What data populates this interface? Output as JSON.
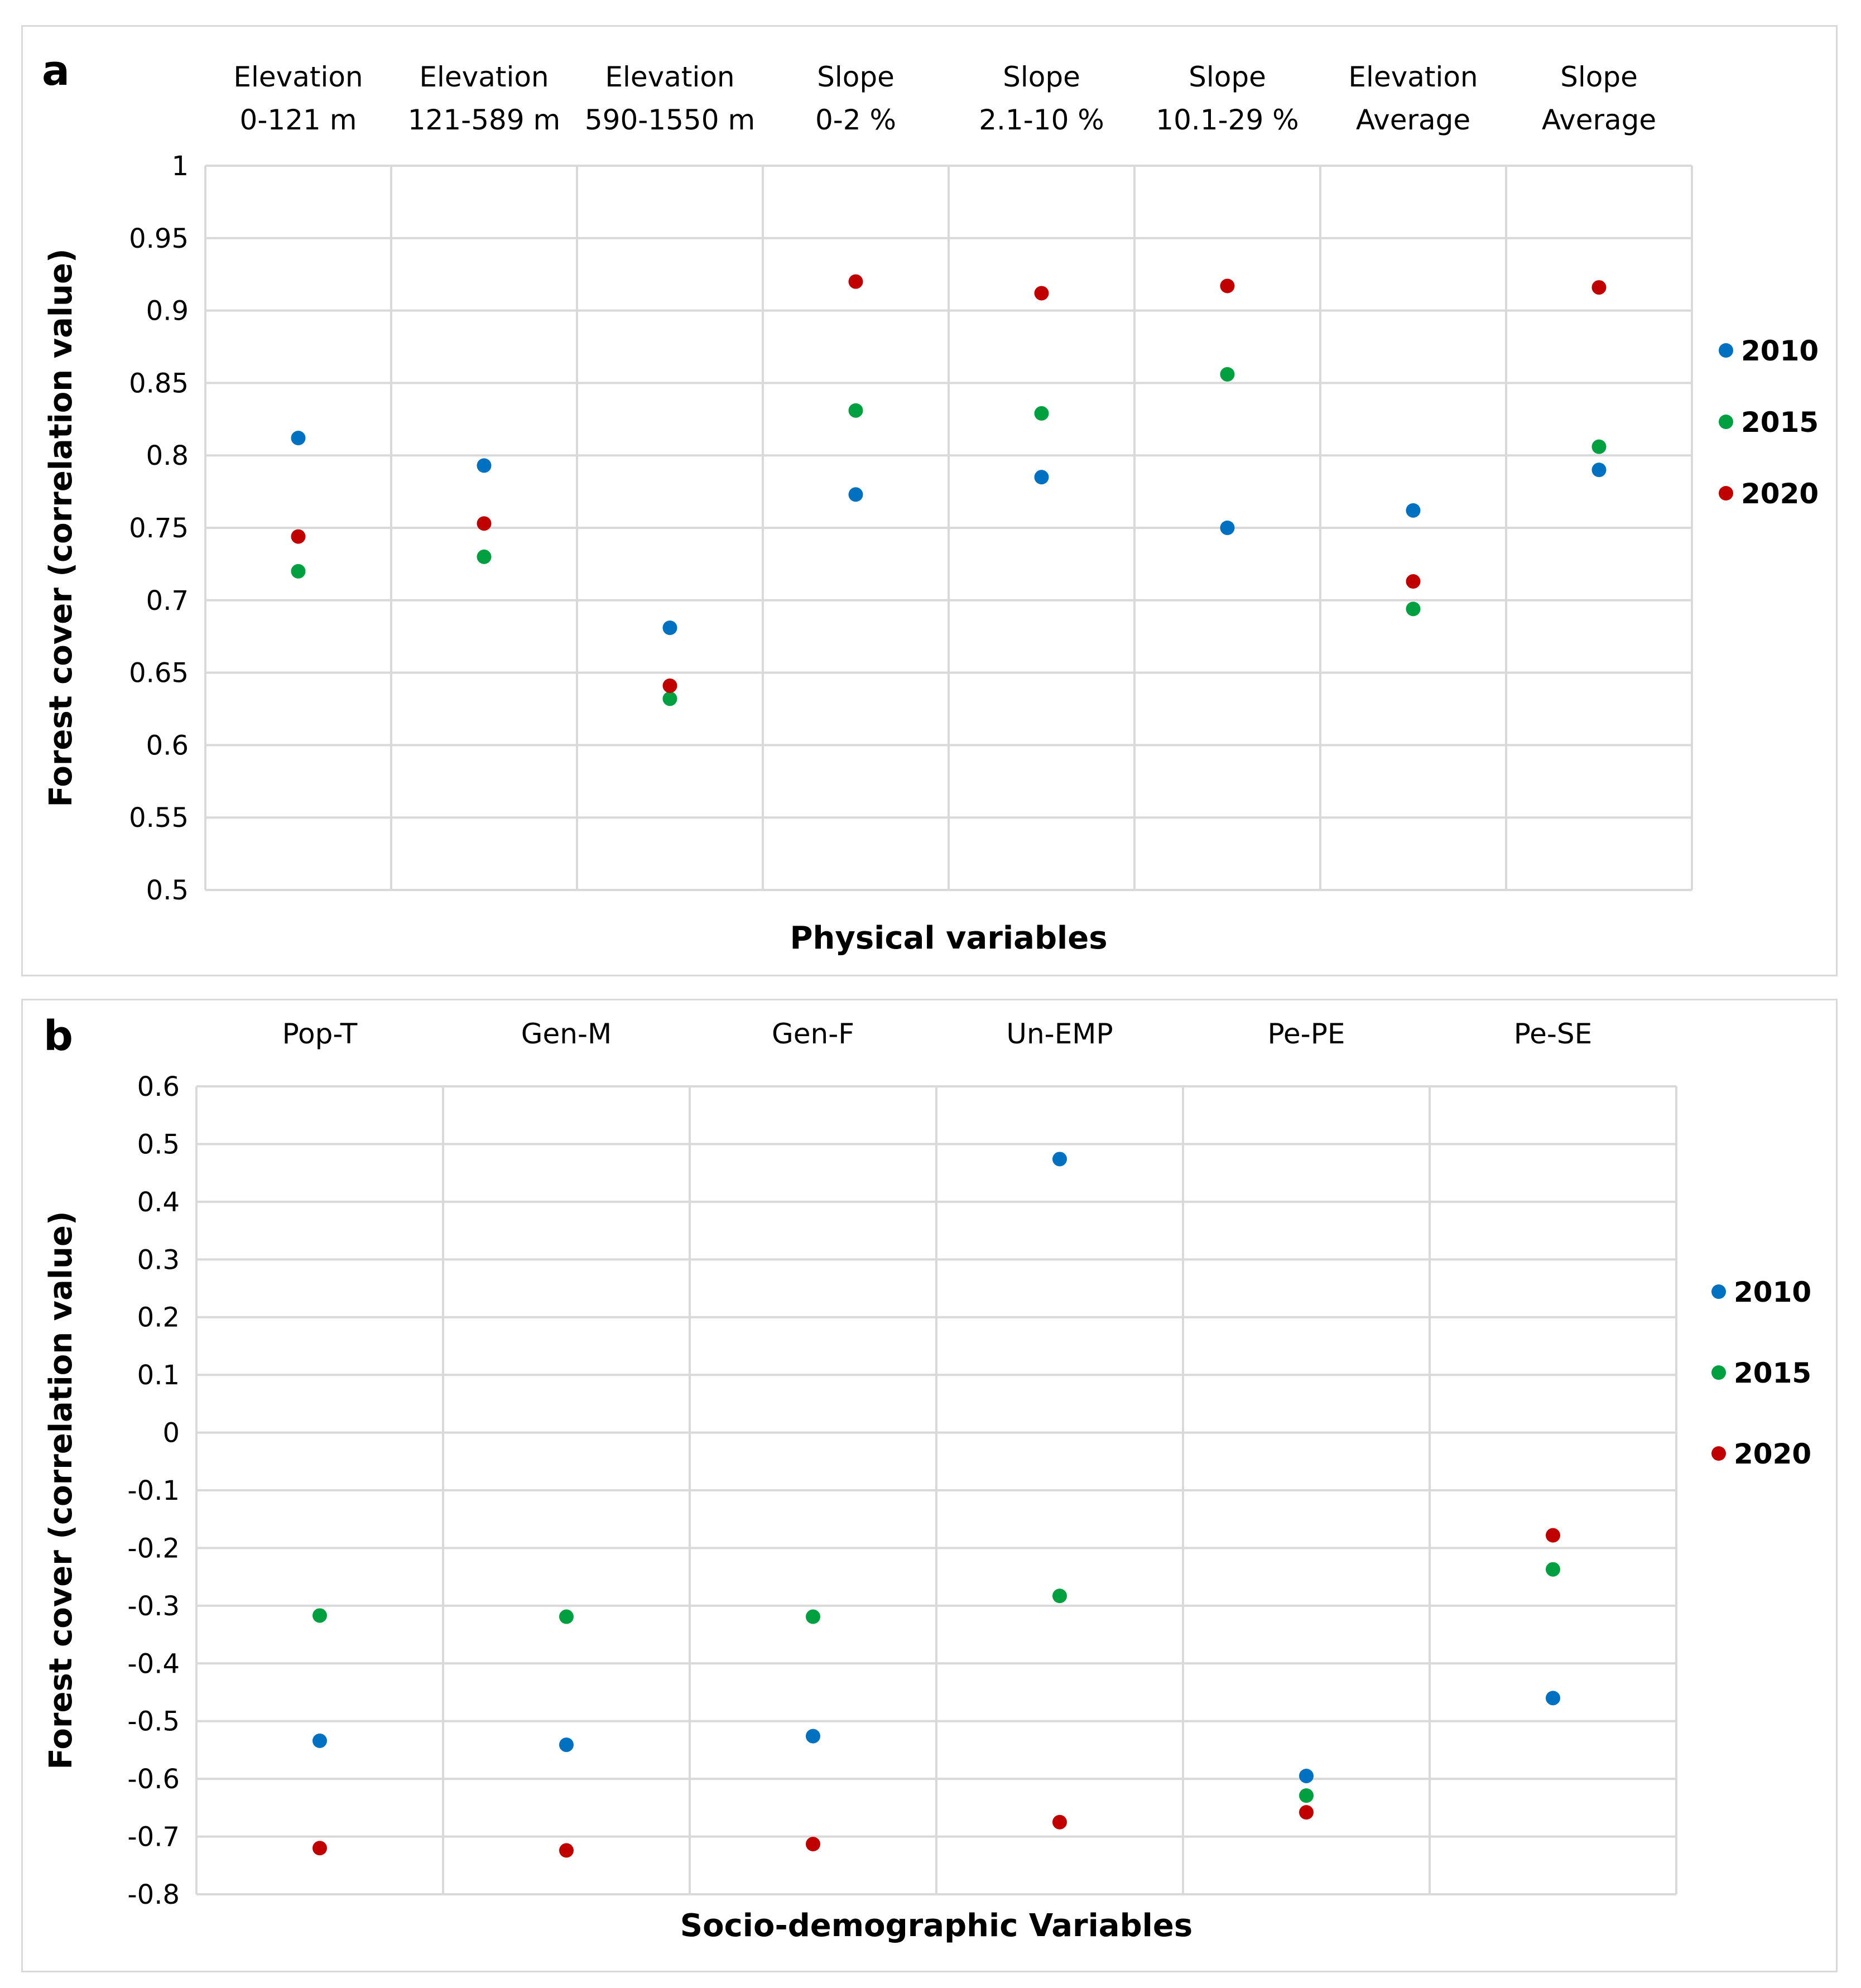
{
  "colors": {
    "2010": "#0070c0",
    "2015": "#00a040",
    "2020": "#c00000",
    "grid": "#d9d9d9"
  },
  "chart_data": [
    {
      "type": "scatter",
      "panel_label": "a",
      "categories": [
        [
          "Elevation",
          "0-121 m"
        ],
        [
          "Elevation",
          "121-589 m"
        ],
        [
          "Elevation",
          "590-1550 m"
        ],
        [
          "Slope",
          "0-2 %"
        ],
        [
          "Slope",
          "2.1-10 %"
        ],
        [
          "Slope",
          "10.1-29 %"
        ],
        [
          "Elevation",
          "Average"
        ],
        [
          "Slope",
          "Average"
        ]
      ],
      "series": [
        {
          "name": "2010",
          "values": [
            0.812,
            0.793,
            0.681,
            0.773,
            0.785,
            0.75,
            0.762,
            0.79
          ]
        },
        {
          "name": "2015",
          "values": [
            0.72,
            0.73,
            0.632,
            0.831,
            0.829,
            0.856,
            0.694,
            0.806
          ]
        },
        {
          "name": "2020",
          "values": [
            0.744,
            0.753,
            0.641,
            0.92,
            0.912,
            0.917,
            0.713,
            0.916
          ]
        }
      ],
      "ylim": [
        0.5,
        1
      ],
      "yticks": [
        "1",
        "0.95",
        "0.9",
        "0.85",
        "0.8",
        "0.75",
        "0.7",
        "0.65",
        "0.6",
        "0.55",
        "0.5"
      ],
      "ylabel": "Forest cover (correlation value)",
      "xlabel": "Physical variables",
      "legend": "right",
      "grid": true
    },
    {
      "type": "scatter",
      "panel_label": "b",
      "categories": [
        [
          "Pop-T"
        ],
        [
          "Gen-M"
        ],
        [
          "Gen-F"
        ],
        [
          "Un-EMP"
        ],
        [
          "Pe-PE"
        ],
        [
          "Pe-SE"
        ]
      ],
      "series": [
        {
          "name": "2010",
          "values": [
            -0.534,
            -0.541,
            -0.526,
            0.474,
            -0.595,
            -0.46
          ]
        },
        {
          "name": "2015",
          "values": [
            -0.317,
            -0.319,
            -0.319,
            -0.283,
            -0.629,
            -0.237
          ]
        },
        {
          "name": "2020",
          "values": [
            -0.72,
            -0.724,
            -0.713,
            -0.675,
            -0.658,
            -0.178
          ]
        }
      ],
      "ylim": [
        -0.8,
        0.6
      ],
      "yticks": [
        "0.6",
        "0.5",
        "0.4",
        "0.3",
        "0.2",
        "0.1",
        "0",
        "-0.1",
        "-0.2",
        "-0.3",
        "-0.4",
        "-0.5",
        "-0.6",
        "-0.7",
        "-0.8"
      ],
      "ylabel": "Forest cover (correlation value)",
      "xlabel": "Socio-demographic Variables",
      "legend": "right",
      "grid": true
    }
  ]
}
